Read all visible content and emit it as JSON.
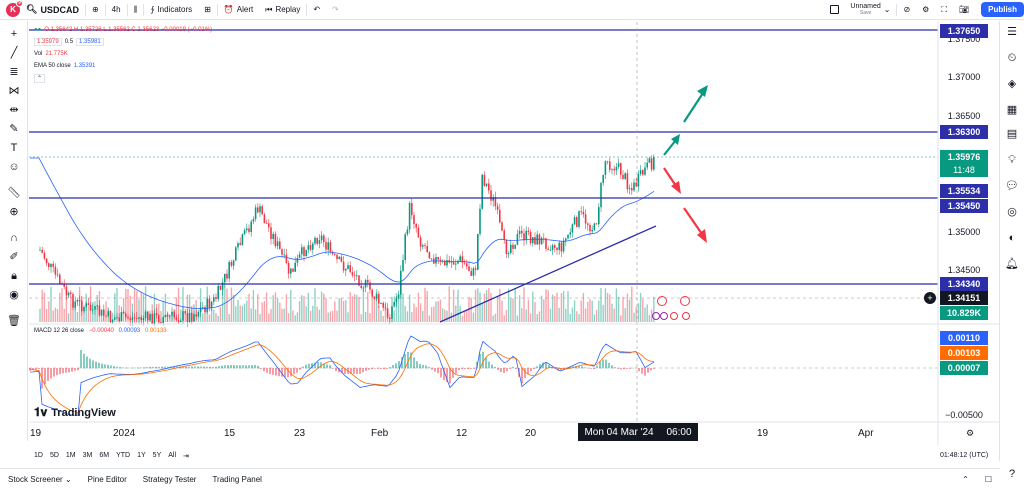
{
  "topbar": {
    "avatar_letter": "K",
    "notification_count": "9",
    "symbol": "USDCAD",
    "interval": "4h",
    "indicators_label": "Indicators",
    "alert_label": "Alert",
    "replay_label": "Replay",
    "layout_name": "Unnamed",
    "layout_status": "Save",
    "publish_label": "Publish"
  },
  "legend": {
    "ohlc": "O 1.35642  H 1.35726  L 1.35562  C 1.35623  −0.00019 (−0.01%)",
    "bid": "1.35979",
    "spread": "0.5",
    "ask": "1.35981",
    "vol_label": "Vol",
    "vol_value": "21.775K",
    "ema_label": "EMA 50 close",
    "ema_value": "1.35391"
  },
  "price_axis": {
    "ticks": [
      "1.37500",
      "1.37000",
      "1.36500",
      "1.35000",
      "1.34500"
    ],
    "labels": [
      {
        "text": "1.37650",
        "color": "#2c2fa8"
      },
      {
        "text": "1.36300",
        "color": "#2c2fa8"
      },
      {
        "text": "1.35976",
        "color": "#089981"
      },
      {
        "text": "11:48",
        "color": "#089981"
      },
      {
        "text": "1.35534",
        "color": "#2c2fa8"
      },
      {
        "text": "1.35450",
        "color": "#2c2fa8"
      },
      {
        "text": "1.34340",
        "color": "#2c2fa8"
      },
      {
        "text": "1.34151",
        "color": "#131722"
      },
      {
        "text": "10.829K",
        "color": "#089981"
      }
    ]
  },
  "macd": {
    "label": "MACD 12 26 close",
    "v1": "−0.00040",
    "v2": "0.00093",
    "v3": "0.00133",
    "axis_labels": [
      {
        "text": "0.00110",
        "color": "#2962ff"
      },
      {
        "text": "0.00103",
        "color": "#ff6d00"
      },
      {
        "text": "0.00007",
        "color": "#089981"
      }
    ],
    "bottom_tick": "−0.00500"
  },
  "time_axis": {
    "ticks": [
      "19",
      "2024",
      "15",
      "23",
      "Feb",
      "12",
      "20",
      "19",
      "Apr"
    ],
    "cursor_date": "Mon 04 Mar '24",
    "cursor_time": "06:00"
  },
  "ranges": [
    "1D",
    "5D",
    "1M",
    "3M",
    "6M",
    "YTD",
    "1Y",
    "5Y",
    "All"
  ],
  "clock": "01:48:12 (UTC)",
  "bottom_tabs": [
    "Stock Screener",
    "Pine Editor",
    "Strategy Tester",
    "Trading Panel"
  ],
  "brand": "TradingView",
  "colors": {
    "up": "#089981",
    "down": "#f23645",
    "level": "#2c2fa8",
    "accent": "#2962ff"
  }
}
